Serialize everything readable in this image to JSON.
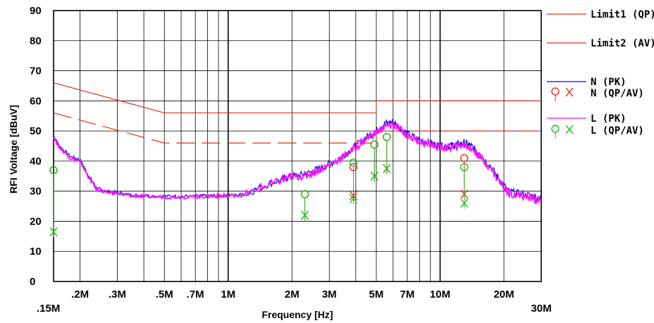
{
  "chart_data": {
    "type": "line",
    "xlabel": "Frequency [Hz]",
    "ylabel": "RFI Voltage [dBuV]",
    "xscale": "log",
    "xlim": [
      0.15,
      30
    ],
    "ylim": [
      0,
      90
    ],
    "x_ticks": [
      {
        "value": 0.15,
        "label": ".15M"
      },
      {
        "value": 0.2,
        "label": ".2M"
      },
      {
        "value": 0.3,
        "label": ".3M"
      },
      {
        "value": 0.5,
        "label": ".5M"
      },
      {
        "value": 0.7,
        "label": ".7M"
      },
      {
        "value": 1,
        "label": "1M"
      },
      {
        "value": 2,
        "label": "2M"
      },
      {
        "value": 3,
        "label": "3M"
      },
      {
        "value": 5,
        "label": "5M"
      },
      {
        "value": 7,
        "label": "7M"
      },
      {
        "value": 10,
        "label": "10M"
      },
      {
        "value": 20,
        "label": "20M"
      },
      {
        "value": 30,
        "label": "30M"
      }
    ],
    "y_ticks": [
      0,
      10,
      20,
      30,
      40,
      50,
      60,
      70,
      80,
      90
    ],
    "grid": true,
    "legend_position": "right",
    "limits": [
      {
        "name": "Limit1 (QP)",
        "color": "#e03020",
        "dash": "solid",
        "points": [
          [
            0.15,
            66
          ],
          [
            0.5,
            56
          ],
          [
            5,
            56
          ],
          [
            5,
            60
          ],
          [
            30,
            60
          ]
        ]
      },
      {
        "name": "Limit2 (AV)",
        "color": "#e03020",
        "dash": "dashed",
        "points": [
          [
            0.15,
            56
          ],
          [
            0.5,
            46
          ],
          [
            5,
            46
          ],
          [
            5,
            50
          ],
          [
            30,
            50
          ]
        ]
      }
    ],
    "series": [
      {
        "name": "N (PK)",
        "color": "#1010c0",
        "points": [
          [
            0.15,
            48.5
          ],
          [
            0.16,
            45
          ],
          [
            0.18,
            41.5
          ],
          [
            0.2,
            40.5
          ],
          [
            0.22,
            35
          ],
          [
            0.24,
            31
          ],
          [
            0.26,
            30
          ],
          [
            0.3,
            29.5
          ],
          [
            0.35,
            28.7
          ],
          [
            0.4,
            28.5
          ],
          [
            0.5,
            28.3
          ],
          [
            0.6,
            28.3
          ],
          [
            0.7,
            28.3
          ],
          [
            0.8,
            28.5
          ],
          [
            0.9,
            28.6
          ],
          [
            1.0,
            28.6
          ],
          [
            1.2,
            29.0
          ],
          [
            1.5,
            32
          ],
          [
            1.8,
            34
          ],
          [
            2.0,
            35
          ],
          [
            2.3,
            35.5
          ],
          [
            2.6,
            37
          ],
          [
            3.0,
            39
          ],
          [
            3.5,
            42
          ],
          [
            4.0,
            45
          ],
          [
            4.5,
            48
          ],
          [
            5.0,
            50
          ],
          [
            5.5,
            52.5
          ],
          [
            6.0,
            53
          ],
          [
            6.5,
            51
          ],
          [
            7.0,
            49
          ],
          [
            8.0,
            47
          ],
          [
            9.0,
            46
          ],
          [
            10.0,
            45
          ],
          [
            11.0,
            45
          ],
          [
            12.0,
            45.5
          ],
          [
            13.0,
            46
          ],
          [
            14.0,
            45
          ],
          [
            15.0,
            43
          ],
          [
            17.0,
            39
          ],
          [
            19.0,
            34
          ],
          [
            21.0,
            30
          ],
          [
            24.0,
            29
          ],
          [
            27.0,
            28.5
          ],
          [
            30.0,
            27.5
          ]
        ]
      },
      {
        "name": "L (PK)",
        "color": "#ff10ff",
        "points": [
          [
            0.15,
            48
          ],
          [
            0.16,
            44.5
          ],
          [
            0.18,
            41
          ],
          [
            0.2,
            40
          ],
          [
            0.22,
            34.5
          ],
          [
            0.24,
            30.7
          ],
          [
            0.26,
            29.7
          ],
          [
            0.3,
            29.2
          ],
          [
            0.35,
            28.5
          ],
          [
            0.4,
            28.3
          ],
          [
            0.5,
            28.1
          ],
          [
            0.6,
            28.1
          ],
          [
            0.7,
            28.1
          ],
          [
            0.8,
            28.3
          ],
          [
            0.9,
            28.4
          ],
          [
            1.0,
            28.4
          ],
          [
            1.2,
            28.8
          ],
          [
            1.5,
            31.7
          ],
          [
            1.8,
            33.7
          ],
          [
            2.0,
            34.7
          ],
          [
            2.3,
            35.2
          ],
          [
            2.6,
            36.6
          ],
          [
            3.0,
            38.6
          ],
          [
            3.5,
            41.5
          ],
          [
            4.0,
            44.5
          ],
          [
            4.5,
            47.5
          ],
          [
            5.0,
            49.5
          ],
          [
            5.5,
            51.5
          ],
          [
            6.0,
            52
          ],
          [
            6.5,
            50.5
          ],
          [
            7.0,
            48.5
          ],
          [
            8.0,
            46.5
          ],
          [
            9.0,
            45.5
          ],
          [
            10.0,
            44.5
          ],
          [
            11.0,
            44.5
          ],
          [
            12.0,
            45
          ],
          [
            13.0,
            45.3
          ],
          [
            14.0,
            44.3
          ],
          [
            15.0,
            42.3
          ],
          [
            17.0,
            38.3
          ],
          [
            19.0,
            33.3
          ],
          [
            21.0,
            29.5
          ],
          [
            24.0,
            28.5
          ],
          [
            27.0,
            27.8
          ],
          [
            30.0,
            26.8
          ]
        ]
      }
    ],
    "markers": [
      {
        "name": "N (QP/AV)",
        "color": "#e03020",
        "points": [
          {
            "x": 0.15,
            "qp": 37,
            "av": 16.5
          },
          {
            "x": 2.3,
            "qp": 29,
            "av": 22
          },
          {
            "x": 3.9,
            "qp": 38,
            "av": 28.5
          },
          {
            "x": 4.9,
            "qp": 45.5,
            "av": 35
          },
          {
            "x": 5.6,
            "qp": 48,
            "av": 37.5
          },
          {
            "x": 13,
            "qp": 41,
            "av": 29
          }
        ]
      },
      {
        "name": "L (QP/AV)",
        "color": "#20c020",
        "points": [
          {
            "x": 0.15,
            "qp": 37,
            "av": 16.5
          },
          {
            "x": 2.3,
            "qp": 29,
            "av": 22
          },
          {
            "x": 3.9,
            "qp": 39.5,
            "av": 27.5
          },
          {
            "x": 4.9,
            "qp": 45.5,
            "av": 35
          },
          {
            "x": 5.6,
            "qp": 48,
            "av": 37.5
          },
          {
            "x": 13,
            "qp": 38,
            "av": 26
          }
        ]
      }
    ],
    "legend": [
      {
        "label": "Limit1 (QP)",
        "kind": "line",
        "color": "#e03020"
      },
      {
        "label": "Limit2 (AV)",
        "kind": "line",
        "color": "#e03020"
      },
      {
        "label": "N (PK)",
        "kind": "line",
        "color": "#1010c0"
      },
      {
        "label": "N (QP/AV)",
        "kind": "marker",
        "color": "#e03020"
      },
      {
        "label": "L (PK)",
        "kind": "line",
        "color": "#ff10ff"
      },
      {
        "label": "L (QP/AV)",
        "kind": "marker",
        "color": "#20c020"
      }
    ]
  }
}
